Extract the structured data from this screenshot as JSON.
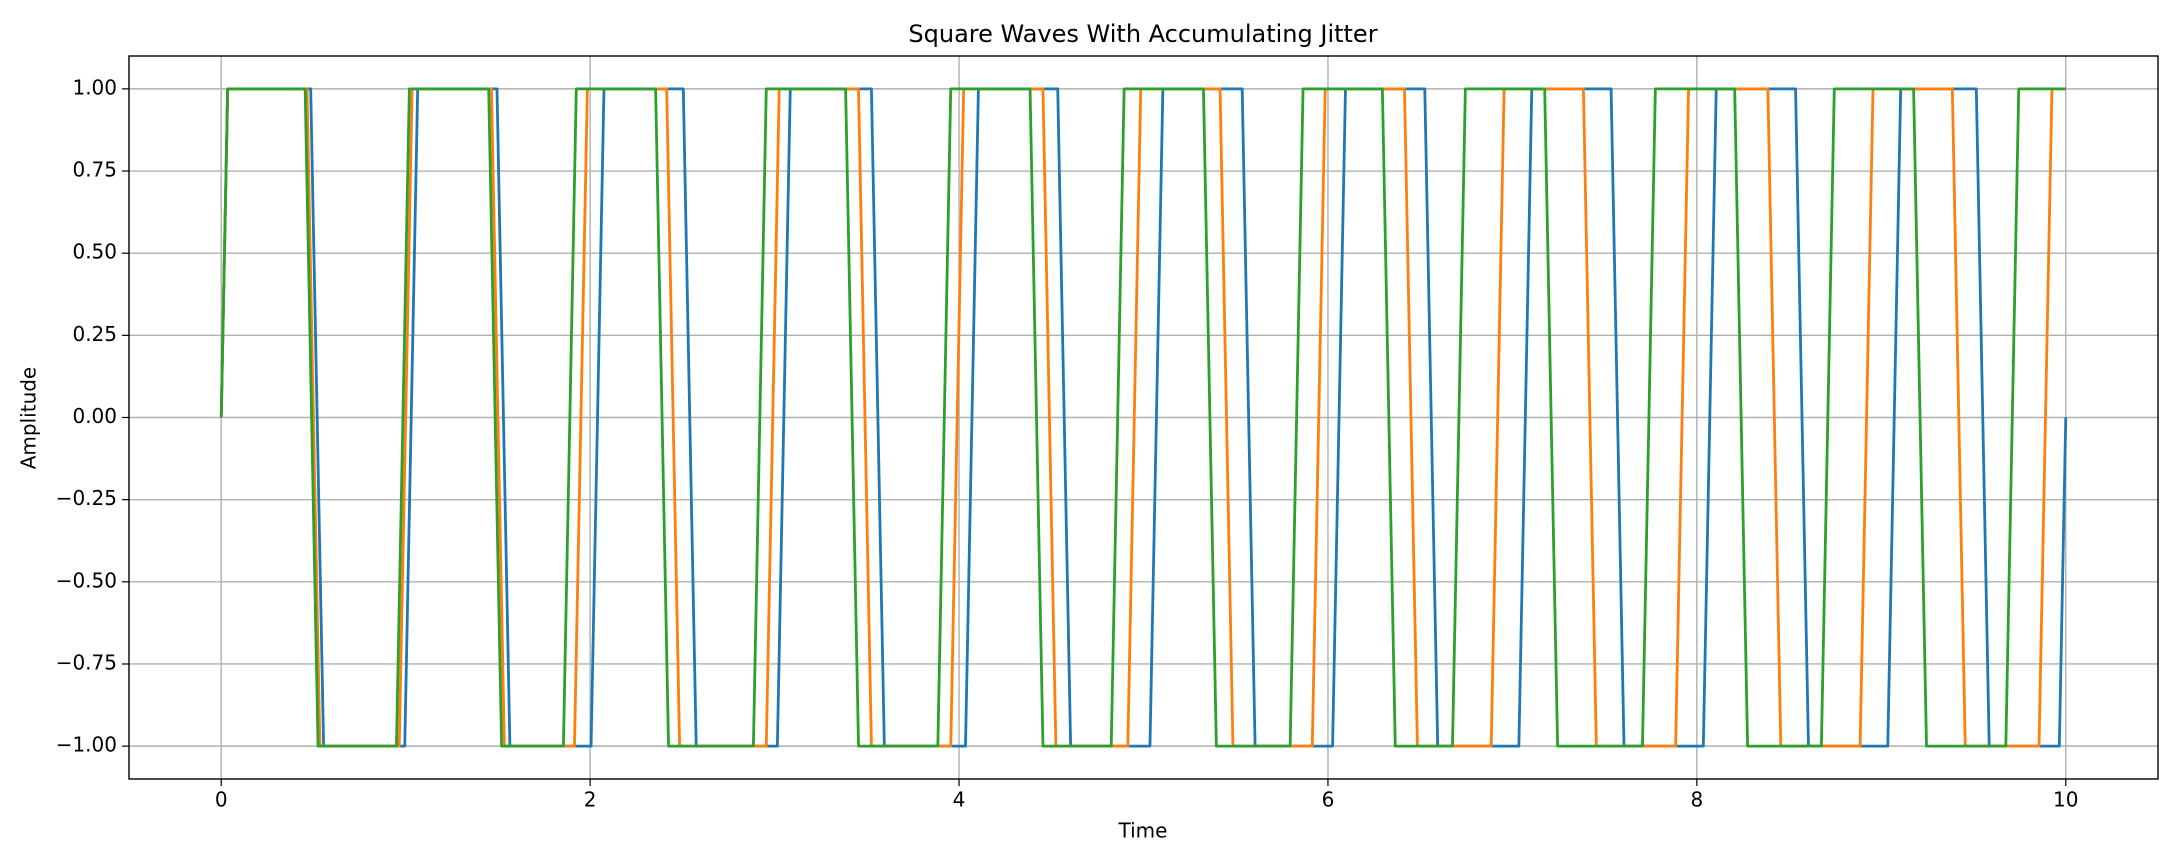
{
  "chart_data": {
    "type": "line",
    "title": "Square Waves With Accumulating Jitter",
    "xlabel": "Time",
    "ylabel": "Amplitude",
    "xlim": [
      -0.5,
      10.5
    ],
    "xticks": [
      0,
      2,
      4,
      6,
      8,
      10
    ],
    "ylim": [
      -1.1,
      1.1
    ],
    "yticks": [
      {
        "value": -1,
        "label": "−1.00"
      },
      {
        "value": -0.75,
        "label": "−0.75"
      },
      {
        "value": -0.5,
        "label": "−0.50"
      },
      {
        "value": -0.25,
        "label": "−0.25"
      },
      {
        "value": 0,
        "label": "0.00"
      },
      {
        "value": 0.25,
        "label": "0.25"
      },
      {
        "value": 0.5,
        "label": "0.50"
      },
      {
        "value": 0.75,
        "label": "0.75"
      },
      {
        "value": 1,
        "label": "1.00"
      }
    ],
    "grid": true,
    "series": [
      {
        "color": "#1f77b4",
        "x": [
          0,
          0.035,
          0.485,
          0.555,
          0.995,
          1.065,
          1.495,
          1.565,
          2.005,
          2.075,
          2.505,
          2.575,
          3.015,
          3.085,
          3.525,
          3.595,
          4.035,
          4.105,
          4.535,
          4.605,
          5.035,
          5.105,
          5.535,
          5.605,
          6.025,
          6.095,
          6.525,
          6.595,
          7.035,
          7.105,
          7.535,
          7.605,
          8.035,
          8.105,
          8.535,
          8.605,
          9.035,
          9.105,
          9.515,
          9.585,
          9.965,
          10
        ],
        "values": [
          0,
          1,
          1,
          -1,
          -1,
          1,
          1,
          -1,
          -1,
          1,
          1,
          -1,
          -1,
          1,
          1,
          -1,
          -1,
          1,
          1,
          -1,
          -1,
          1,
          1,
          -1,
          -1,
          1,
          1,
          -1,
          -1,
          1,
          1,
          -1,
          -1,
          1,
          1,
          -1,
          -1,
          1,
          1,
          -1,
          -1,
          0
        ]
      },
      {
        "color": "#ff7f0e",
        "x": [
          0,
          0.035,
          0.465,
          0.535,
          0.965,
          1.035,
          1.465,
          1.535,
          1.915,
          1.985,
          2.415,
          2.485,
          2.955,
          3.025,
          3.455,
          3.525,
          3.955,
          4.025,
          4.455,
          4.525,
          4.915,
          4.985,
          5.415,
          5.485,
          5.915,
          5.985,
          6.415,
          6.485,
          6.885,
          6.955,
          7.385,
          7.455,
          7.885,
          7.955,
          8.385,
          8.455,
          8.885,
          8.955,
          9.385,
          9.455,
          9.855,
          9.925,
          10
        ],
        "values": [
          0,
          1,
          1,
          -1,
          -1,
          1,
          1,
          -1,
          -1,
          1,
          1,
          -1,
          -1,
          1,
          1,
          -1,
          -1,
          1,
          1,
          -1,
          -1,
          1,
          1,
          -1,
          -1,
          1,
          1,
          -1,
          -1,
          1,
          1,
          -1,
          -1,
          1,
          1,
          -1,
          -1,
          1,
          1,
          -1,
          -1,
          1,
          1
        ]
      },
      {
        "color": "#2ca02c",
        "x": [
          0,
          0.035,
          0.455,
          0.525,
          0.95,
          1.02,
          1.45,
          1.52,
          1.855,
          1.925,
          2.355,
          2.425,
          2.885,
          2.955,
          3.385,
          3.455,
          3.885,
          3.955,
          4.385,
          4.455,
          4.825,
          4.895,
          5.325,
          5.395,
          5.795,
          5.865,
          6.295,
          6.365,
          6.675,
          6.745,
          7.175,
          7.245,
          7.705,
          7.775,
          8.205,
          8.275,
          8.675,
          8.745,
          9.175,
          9.245,
          9.675,
          9.745,
          10
        ],
        "values": [
          0,
          1,
          1,
          -1,
          -1,
          1,
          1,
          -1,
          -1,
          1,
          1,
          -1,
          -1,
          1,
          1,
          -1,
          -1,
          1,
          1,
          -1,
          -1,
          1,
          1,
          -1,
          -1,
          1,
          1,
          -1,
          -1,
          1,
          1,
          -1,
          -1,
          1,
          1,
          -1,
          -1,
          1,
          1,
          -1,
          -1,
          1,
          1
        ]
      }
    ]
  }
}
